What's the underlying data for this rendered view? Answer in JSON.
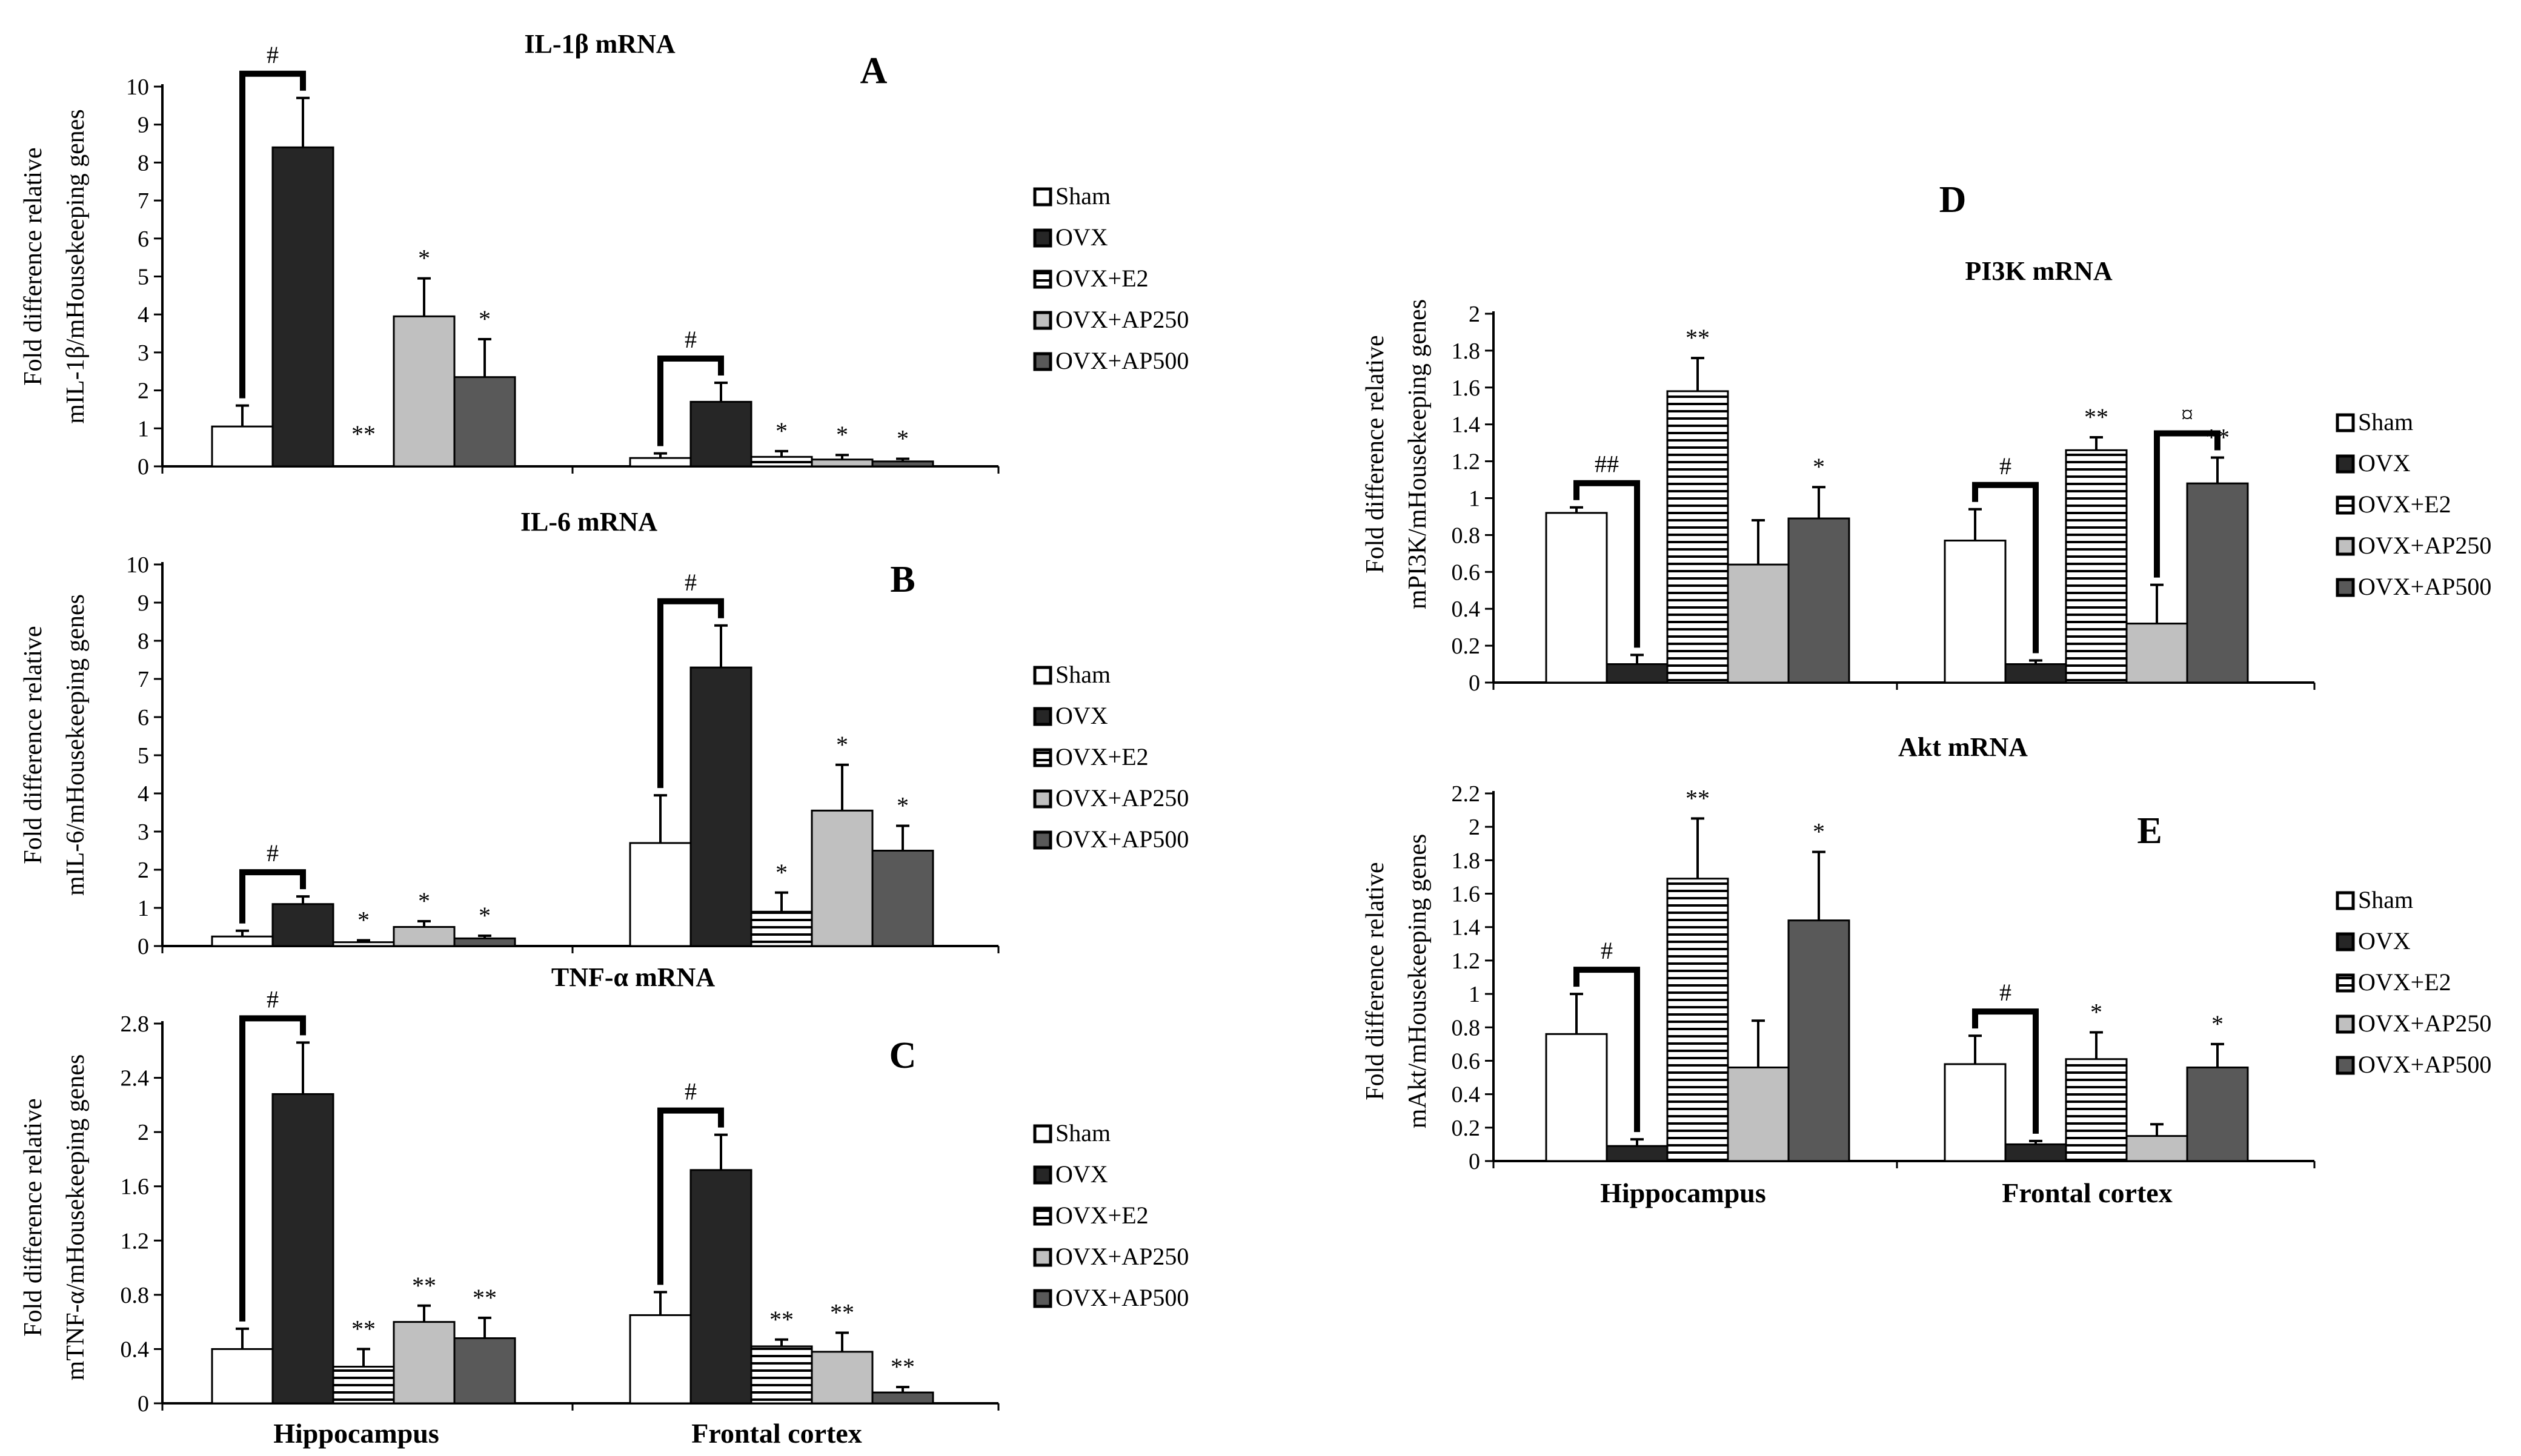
{
  "colors": {
    "Sham": "#ffffff",
    "OVX": "#262626",
    "OVX+E2": "#ffffff",
    "OVX+AP250": "#c0c0c0",
    "OVX+AP500": "#595959",
    "axis": "#000000"
  },
  "chart_data": [
    {
      "id": "A",
      "type": "bar",
      "title": "IL-1β mRNA",
      "panel_letter": "A",
      "ylabel": [
        "Fold difference relative",
        "mIL-1β/mHousekeeping genes"
      ],
      "ylim": [
        0,
        10
      ],
      "yticks": [
        "0",
        "1",
        "2",
        "3",
        "4",
        "5",
        "6",
        "7",
        "8",
        "9",
        "10"
      ],
      "categories": [
        "Hippocampus",
        "Frontal cortex"
      ],
      "legend": [
        "Sham",
        "OVX",
        "OVX+E2",
        "OVX+AP250",
        "OVX+AP500"
      ],
      "series": [
        {
          "name": "Sham",
          "values": [
            1.05,
            0.22
          ],
          "errors": [
            0.55,
            0.12
          ],
          "marks": [
            "",
            ""
          ]
        },
        {
          "name": "OVX",
          "values": [
            8.4,
            1.7
          ],
          "errors": [
            1.3,
            0.5
          ],
          "marks": [
            "",
            ""
          ]
        },
        {
          "name": "OVX+E2",
          "values": [
            0,
            0.25
          ],
          "errors": [
            0,
            0.15
          ],
          "marks": [
            "**",
            "*"
          ]
        },
        {
          "name": "OVX+AP250",
          "values": [
            3.95,
            0.18
          ],
          "errors": [
            1.0,
            0.12
          ],
          "marks": [
            "*",
            "*"
          ]
        },
        {
          "name": "OVX+AP500",
          "values": [
            2.35,
            0.13
          ],
          "errors": [
            1.0,
            0.07
          ],
          "marks": [
            "*",
            "*"
          ]
        }
      ],
      "brackets": [
        {
          "group": 0,
          "from": 0,
          "to": 1,
          "label": "#"
        },
        {
          "group": 1,
          "from": 0,
          "to": 1,
          "label": "#"
        }
      ]
    },
    {
      "id": "B",
      "type": "bar",
      "title": "IL-6 mRNA",
      "panel_letter": "B",
      "ylabel": [
        "Fold difference relative",
        "mIL-6/mHousekeeping genes"
      ],
      "ylim": [
        0,
        10
      ],
      "yticks": [
        "0",
        "1",
        "2",
        "3",
        "4",
        "5",
        "6",
        "7",
        "8",
        "9",
        "10"
      ],
      "categories": [
        "Hippocampus",
        "Frontal cortex"
      ],
      "legend": [
        "Sham",
        "OVX",
        "OVX+E2",
        "OVX+AP250",
        "OVX+AP500"
      ],
      "series": [
        {
          "name": "Sham",
          "values": [
            0.25,
            2.7
          ],
          "errors": [
            0.15,
            1.25
          ],
          "marks": [
            "",
            ""
          ]
        },
        {
          "name": "OVX",
          "values": [
            1.1,
            7.3
          ],
          "errors": [
            0.2,
            1.1
          ],
          "marks": [
            "",
            ""
          ]
        },
        {
          "name": "OVX+E2",
          "values": [
            0.1,
            0.9
          ],
          "errors": [
            0.05,
            0.5
          ],
          "marks": [
            "*",
            "*"
          ]
        },
        {
          "name": "OVX+AP250",
          "values": [
            0.5,
            3.55
          ],
          "errors": [
            0.15,
            1.2
          ],
          "marks": [
            "*",
            "*"
          ]
        },
        {
          "name": "OVX+AP500",
          "values": [
            0.2,
            2.5
          ],
          "errors": [
            0.07,
            0.65
          ],
          "marks": [
            "*",
            "*"
          ]
        }
      ],
      "brackets": [
        {
          "group": 0,
          "from": 0,
          "to": 1,
          "label": "#"
        },
        {
          "group": 1,
          "from": 0,
          "to": 1,
          "label": "#"
        }
      ]
    },
    {
      "id": "C",
      "type": "bar",
      "title": "TNF-α mRNA",
      "panel_letter": "C",
      "ylabel": [
        "Fold difference relative",
        "mTNF-α/mHousekeeping genes"
      ],
      "ylim": [
        0,
        2.8
      ],
      "yticks": [
        "0",
        "0.4",
        "0.8",
        "1.2",
        "1.6",
        "2",
        "2.4",
        "2.8"
      ],
      "categories": [
        "Hippocampus",
        "Frontal cortex"
      ],
      "legend": [
        "Sham",
        "OVX",
        "OVX+E2",
        "OVX+AP250",
        "OVX+AP500"
      ],
      "series": [
        {
          "name": "Sham",
          "values": [
            0.4,
            0.65
          ],
          "errors": [
            0.15,
            0.17
          ],
          "marks": [
            "",
            ""
          ]
        },
        {
          "name": "OVX",
          "values": [
            2.28,
            1.72
          ],
          "errors": [
            0.38,
            0.26
          ],
          "marks": [
            "",
            ""
          ]
        },
        {
          "name": "OVX+E2",
          "values": [
            0.27,
            0.42
          ],
          "errors": [
            0.13,
            0.05
          ],
          "marks": [
            "**",
            "**"
          ]
        },
        {
          "name": "OVX+AP250",
          "values": [
            0.6,
            0.38
          ],
          "errors": [
            0.12,
            0.14
          ],
          "marks": [
            "**",
            "**"
          ]
        },
        {
          "name": "OVX+AP500",
          "values": [
            0.48,
            0.08
          ],
          "errors": [
            0.15,
            0.04
          ],
          "marks": [
            "**",
            "**"
          ]
        }
      ],
      "brackets": [
        {
          "group": 0,
          "from": 0,
          "to": 1,
          "label": "#"
        },
        {
          "group": 1,
          "from": 0,
          "to": 1,
          "label": "#"
        }
      ]
    },
    {
      "id": "D",
      "type": "bar",
      "title": "PI3K mRNA",
      "panel_letter": "D",
      "ylabel": [
        "Fold difference relative",
        "mPI3K/mHousekeeping genes"
      ],
      "ylim": [
        0,
        2
      ],
      "yticks": [
        "0",
        "0.2",
        "0.4",
        "0.6",
        "0.8",
        "1",
        "1.2",
        "1.4",
        "1.6",
        "1.8",
        "2"
      ],
      "categories": [
        "Hippocampus",
        "Frontal cortex"
      ],
      "legend": [
        "Sham",
        "OVX",
        "OVX+E2",
        "OVX+AP250",
        "OVX+AP500"
      ],
      "series": [
        {
          "name": "Sham",
          "values": [
            0.92,
            0.77
          ],
          "errors": [
            0.03,
            0.17
          ],
          "marks": [
            "",
            ""
          ]
        },
        {
          "name": "OVX",
          "values": [
            0.1,
            0.1
          ],
          "errors": [
            0.05,
            0.02
          ],
          "marks": [
            "",
            ""
          ]
        },
        {
          "name": "OVX+E2",
          "values": [
            1.58,
            1.26
          ],
          "errors": [
            0.18,
            0.07
          ],
          "marks": [
            "**",
            "**"
          ]
        },
        {
          "name": "OVX+AP250",
          "values": [
            0.64,
            0.32
          ],
          "errors": [
            0.24,
            0.21
          ],
          "marks": [
            "",
            ""
          ]
        },
        {
          "name": "OVX+AP500",
          "values": [
            0.89,
            1.08
          ],
          "errors": [
            0.17,
            0.14
          ],
          "marks": [
            "*",
            "**"
          ]
        }
      ],
      "brackets": [
        {
          "group": 0,
          "from": 0,
          "to": 1,
          "label": "##"
        },
        {
          "group": 1,
          "from": 0,
          "to": 1,
          "label": "#"
        },
        {
          "group": 1,
          "from": 3,
          "to": 4,
          "label": "¤"
        }
      ]
    },
    {
      "id": "E",
      "type": "bar",
      "title": "Akt mRNA",
      "panel_letter": "E",
      "ylabel": [
        "Fold difference relative",
        "mAkt/mHousekeeping genes"
      ],
      "ylim": [
        0,
        2.2
      ],
      "yticks": [
        "0",
        "0.2",
        "0.4",
        "0.6",
        "0.8",
        "1",
        "1.2",
        "1.4",
        "1.6",
        "1.8",
        "2",
        "2.2"
      ],
      "categories": [
        "Hippocampus",
        "Frontal cortex"
      ],
      "legend": [
        "Sham",
        "OVX",
        "OVX+E2",
        "OVX+AP250",
        "OVX+AP500"
      ],
      "series": [
        {
          "name": "Sham",
          "values": [
            0.76,
            0.58
          ],
          "errors": [
            0.24,
            0.17
          ],
          "marks": [
            "",
            ""
          ]
        },
        {
          "name": "OVX",
          "values": [
            0.09,
            0.1
          ],
          "errors": [
            0.04,
            0.02
          ],
          "marks": [
            "",
            ""
          ]
        },
        {
          "name": "OVX+E2",
          "values": [
            1.69,
            0.61
          ],
          "errors": [
            0.36,
            0.16
          ],
          "marks": [
            "**",
            "*"
          ]
        },
        {
          "name": "OVX+AP250",
          "values": [
            0.56,
            0.15
          ],
          "errors": [
            0.28,
            0.07
          ],
          "marks": [
            "",
            ""
          ]
        },
        {
          "name": "OVX+AP500",
          "values": [
            1.44,
            0.56
          ],
          "errors": [
            0.41,
            0.14
          ],
          "marks": [
            "*",
            "*"
          ]
        }
      ],
      "brackets": [
        {
          "group": 0,
          "from": 0,
          "to": 1,
          "label": "#"
        },
        {
          "group": 1,
          "from": 0,
          "to": 1,
          "label": "#"
        }
      ]
    }
  ]
}
